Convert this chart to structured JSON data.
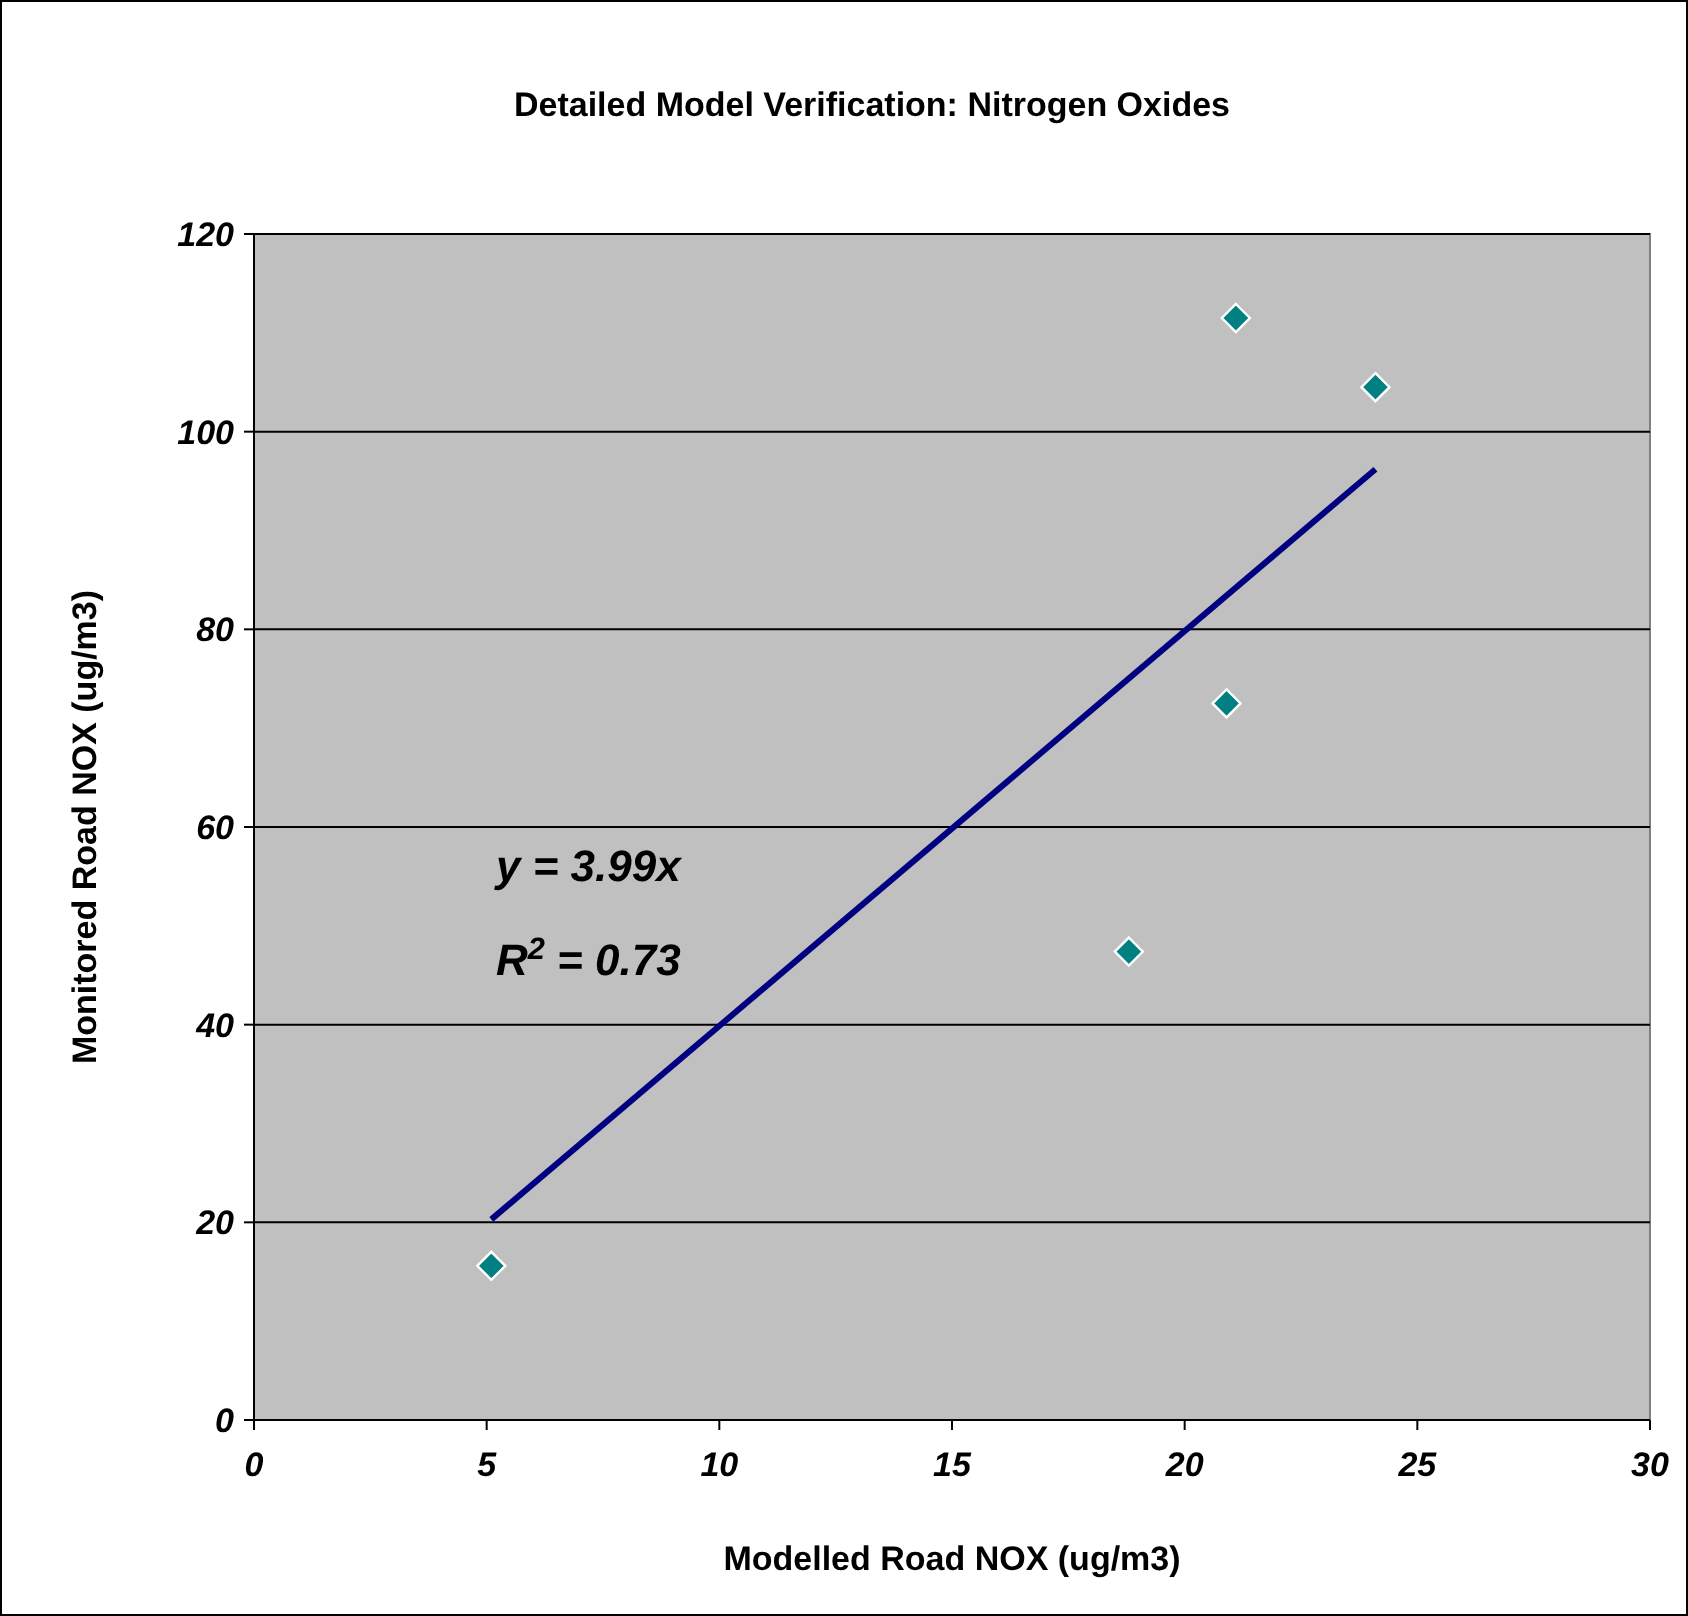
{
  "chart_data": {
    "type": "scatter",
    "title": "Detailed Model Verification: Nitrogen Oxides",
    "xlabel": "Modelled Road NOX (ug/m3)",
    "ylabel": "Monitored Road NOX (ug/m3)",
    "xlim": [
      0,
      30
    ],
    "xticks": [
      0,
      5,
      10,
      15,
      20,
      25,
      30
    ],
    "ylim": [
      0,
      120
    ],
    "yticks": [
      0,
      20,
      40,
      60,
      80,
      100,
      120
    ],
    "grid": "y",
    "annotations": [
      "y = 3.99x",
      "R$^{2}$ = 0.73"
    ],
    "series": [
      {
        "color": "#008080",
        "marker": "diamond",
        "x": [
          5.1,
          18.8,
          20.9,
          21.1,
          24.1
        ],
        "values": [
          15.6,
          47.4,
          72.5,
          111.5,
          104.5
        ]
      },
      {
        "type": "line",
        "color": "#000080",
        "marker": "none",
        "x": [
          5.1,
          24.1
        ],
        "values": [
          20.3,
          96.2
        ]
      }
    ]
  }
}
